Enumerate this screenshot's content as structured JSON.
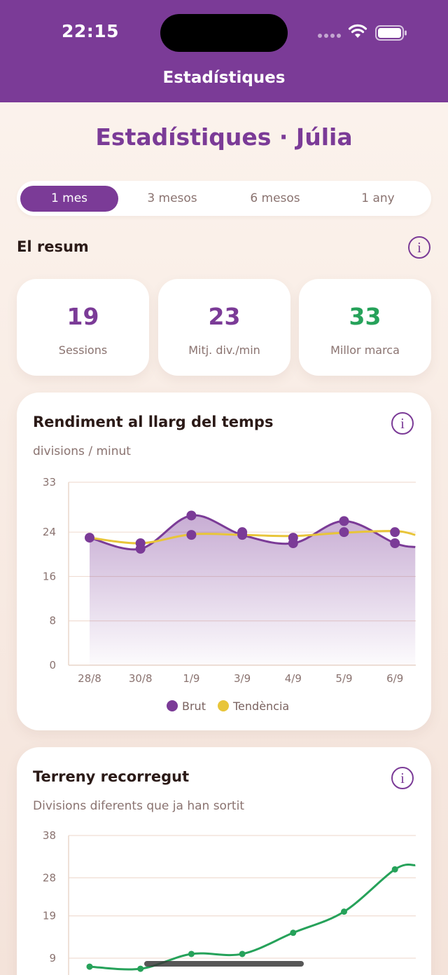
{
  "status_bar": {
    "time": "22:15"
  },
  "nav": {
    "title": "Estadístiques"
  },
  "page_title": "Estadístiques · Júlia",
  "periods": [
    {
      "label": "1 mes",
      "active": true
    },
    {
      "label": "3 mesos",
      "active": false
    },
    {
      "label": "6 mesos",
      "active": false
    },
    {
      "label": "1 any",
      "active": false
    }
  ],
  "summary": {
    "title": "El resum",
    "info_glyph": "i",
    "stats": [
      {
        "value": "19",
        "label": "Sessions"
      },
      {
        "value": "23",
        "label": "Mitj. div./min"
      },
      {
        "value": "33",
        "label": "Millor marca"
      }
    ]
  },
  "performance_card": {
    "title": "Rendiment al llarg del temps",
    "subtitle": "divisions / minut",
    "info_glyph": "i"
  },
  "terrain_card": {
    "title": "Terreny recorregut",
    "subtitle": "Divisions diferents que ja han sortit",
    "info_glyph": "i"
  },
  "colors": {
    "brand": "#7b3b97",
    "trend": "#e8c53a",
    "good": "#26a25a"
  },
  "chart_data": [
    {
      "type": "line",
      "categories": [
        "28/8",
        "30/8",
        "1/9",
        "3/9",
        "4/9",
        "5/9",
        "6/9"
      ],
      "y_ticks": [
        "0",
        "8",
        "16",
        "24",
        "33"
      ],
      "ylim": [
        0,
        33
      ],
      "legend": [
        "Brut",
        "Tendència"
      ],
      "legend_position": "bottom",
      "series": [
        {
          "name": "Brut",
          "color": "#7b3b97",
          "points": [
            [
              0,
              23
            ],
            [
              1,
              21
            ],
            [
              1,
              22
            ],
            [
              2,
              27
            ],
            [
              2,
              23.5
            ],
            [
              3,
              24
            ],
            [
              3,
              23.5
            ],
            [
              4,
              22
            ],
            [
              4,
              23
            ],
            [
              5,
              26
            ],
            [
              5,
              24
            ],
            [
              6,
              24
            ],
            [
              6,
              22
            ]
          ],
          "line": [
            [
              0,
              23
            ],
            [
              1,
              21
            ],
            [
              2,
              27
            ],
            [
              3,
              23.5
            ],
            [
              4,
              22
            ],
            [
              5,
              26
            ],
            [
              6,
              22
            ],
            [
              6.4,
              21.3
            ]
          ]
        },
        {
          "name": "Tendència",
          "color": "#e8c53a",
          "line": [
            [
              0,
              23
            ],
            [
              1,
              22
            ],
            [
              2,
              23.6
            ],
            [
              3,
              23.5
            ],
            [
              4,
              23.3
            ],
            [
              5,
              23.9
            ],
            [
              6,
              24.2
            ],
            [
              6.4,
              23.5
            ]
          ]
        }
      ]
    },
    {
      "type": "line",
      "y_ticks": [
        "9",
        "19",
        "28",
        "38"
      ],
      "ylim": [
        9,
        38
      ],
      "series": [
        {
          "color": "#26a25a",
          "points": [
            [
              0,
              7
            ],
            [
              1,
              6.5
            ],
            [
              2,
              10
            ],
            [
              3,
              10
            ],
            [
              4,
              15
            ],
            [
              5,
              20
            ],
            [
              6,
              30
            ]
          ],
          "line": [
            [
              0,
              7
            ],
            [
              1,
              6.5
            ],
            [
              2,
              10
            ],
            [
              3,
              10
            ],
            [
              4,
              15
            ],
            [
              5,
              20
            ],
            [
              6,
              30
            ],
            [
              6.4,
              31
            ]
          ]
        }
      ]
    }
  ]
}
